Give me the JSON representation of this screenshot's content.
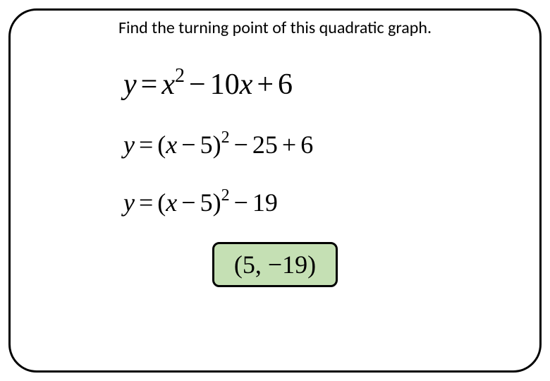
{
  "question": "Find the turning point of this quadratic graph.",
  "equations": {
    "eq1": {
      "lhs": "y",
      "rhs_base1": "x",
      "rhs_exp1": "2",
      "rhs_coef2": "10",
      "rhs_var2": "x",
      "rhs_const": "6"
    },
    "eq2": {
      "lhs": "y",
      "inner_var": "x",
      "inner_const": "5",
      "exp": "2",
      "const1": "25",
      "const2": "6"
    },
    "eq3": {
      "lhs": "y",
      "inner_var": "x",
      "inner_const": "5",
      "exp": "2",
      "const": "19"
    }
  },
  "answer": {
    "x": "5",
    "y": "19"
  },
  "styling": {
    "card_border_color": "#000000",
    "card_border_width": 3,
    "card_border_radius": 40,
    "answer_bg": "#c5e0b4",
    "answer_border_color": "#000000",
    "answer_border_radius": 10,
    "question_fontsize": 24,
    "equation_fontsize": 36,
    "eq1_fontsize": 42,
    "answer_fontsize": 36,
    "text_color": "#000000",
    "background": "#ffffff"
  }
}
